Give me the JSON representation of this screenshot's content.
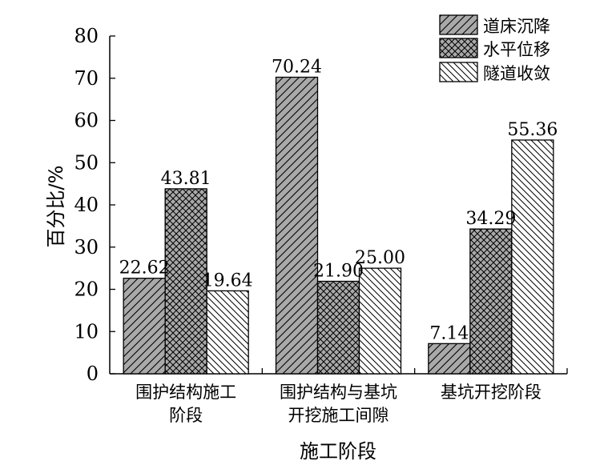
{
  "chart_data": {
    "type": "bar",
    "xlabel": "施工阶段",
    "ylabel": "百分比/%",
    "ylim": [
      0,
      80
    ],
    "yticks": [
      0,
      10,
      20,
      30,
      40,
      50,
      60,
      70,
      80
    ],
    "legend_position": "top-right",
    "grid": false,
    "categories": [
      [
        "围护结构施工",
        "阶段"
      ],
      [
        "围护结构与基坑",
        "开挖施工间隙"
      ],
      [
        "基坑开挖阶段"
      ]
    ],
    "series": [
      {
        "name": "道床沉降",
        "values": [
          22.62,
          70.24,
          7.14
        ],
        "labels": [
          "22.62",
          "70.24",
          "7.14"
        ],
        "pattern": "diag"
      },
      {
        "name": "水平位移",
        "values": [
          43.81,
          21.9,
          34.29
        ],
        "labels": [
          "43.81",
          "21.90",
          "34.29"
        ],
        "pattern": "cross"
      },
      {
        "name": "隧道收敛",
        "values": [
          19.64,
          25.0,
          55.36
        ],
        "labels": [
          "19.64",
          "25.00",
          "55.36"
        ],
        "pattern": "anti"
      }
    ],
    "colors": {
      "bar_fill": "#a9a9a9",
      "hatch": "#000000",
      "light_fill": "#ffffff"
    }
  }
}
